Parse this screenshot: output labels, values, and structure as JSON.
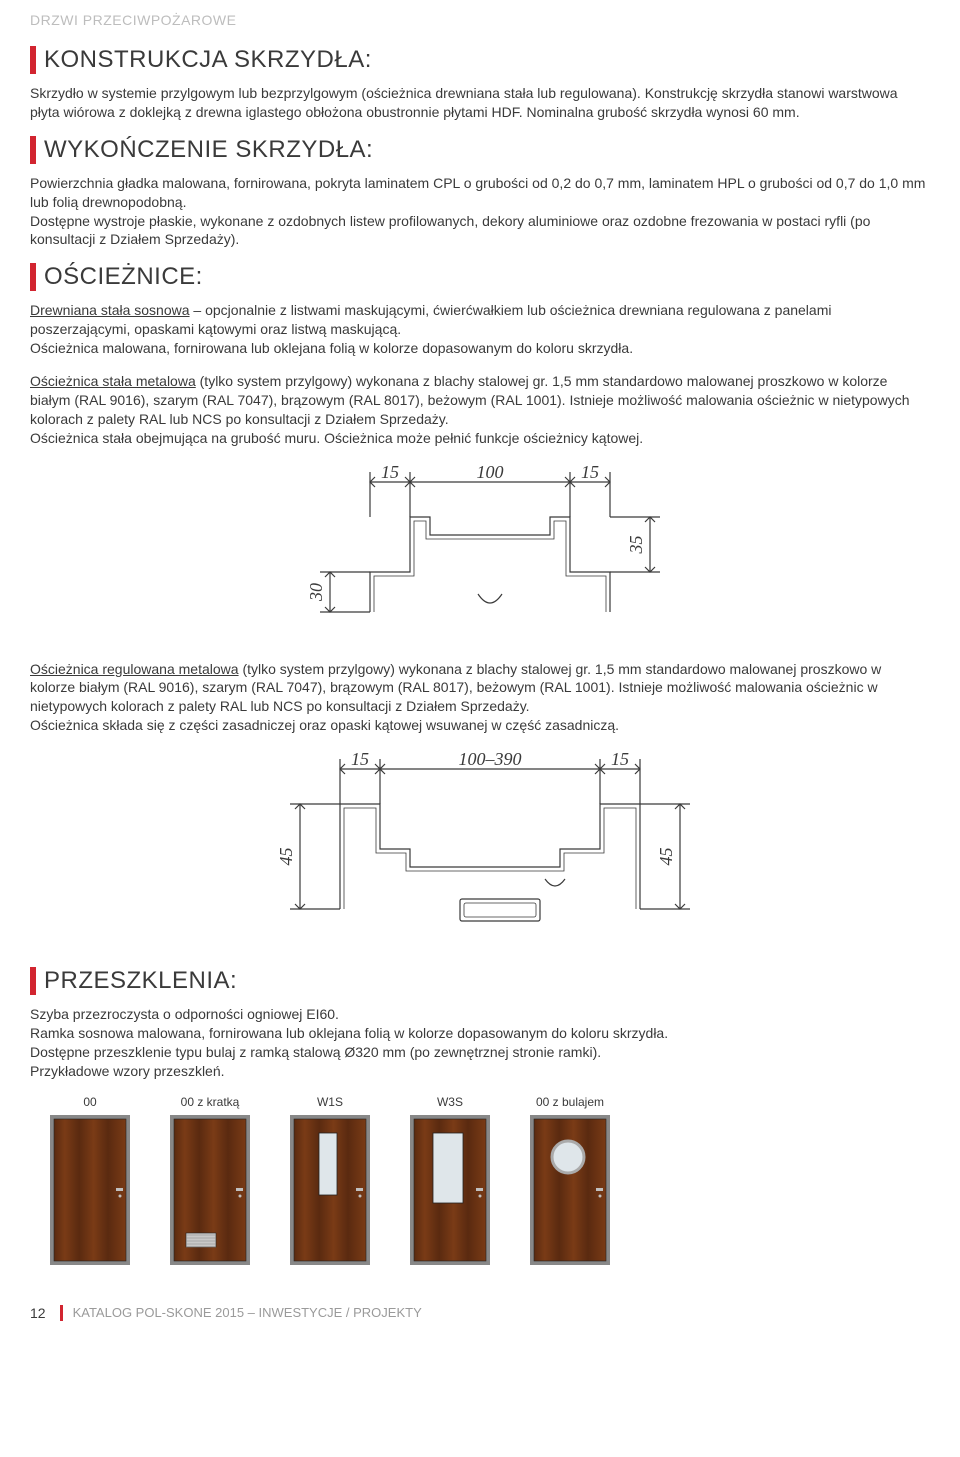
{
  "category": "DRZWI PRZECIWPOŻAROWE",
  "sections": {
    "konstrukcja": {
      "heading": "KONSTRUKCJA SKRZYDŁA:",
      "text": "Skrzydło w systemie przylgowym lub bezprzylgowym (ościeżnica drewniana stała lub regulowana). Konstrukcję skrzydła stanowi warstwowa płyta wiórowa z doklejką z drewna iglastego obłożona obustronnie płytami HDF. Nominalna grubość skrzydła wynosi 60 mm."
    },
    "wykonczenie": {
      "heading": "WYKOŃCZENIE SKRZYDŁA:",
      "text": "Powierzchnia gładka malowana, fornirowana, pokryta laminatem CPL o grubości od 0,2 do 0,7 mm, laminatem HPL o grubości od 0,7 do 1,0 mm lub folią drewnopodobną.\nDostępne wystroje płaskie, wykonane z ozdobnych listew profilowanych, dekory aluminiowe oraz ozdobne frezowania w postaci ryfli (po konsultacji z Działem Sprzedaży)."
    },
    "oscieznice": {
      "heading": "OŚCIEŻNICE:",
      "p1_lead": "Drewniana stała sosnowa",
      "p1_rest": " – opcjonalnie z listwami maskującymi, ćwierćwałkiem lub ościeżnica drewniana regulowana z panelami poszerzającymi, opaskami kątowymi oraz listwą maskującą.\nOścieżnica malowana, fornirowana lub oklejana folią w kolorze dopasowanym do koloru skrzydła.",
      "p2_lead": "Ościeżnica stała metalowa",
      "p2_rest": " (tylko system przylgowy) wykonana z blachy stalowej gr. 1,5 mm standardowo malowanej proszkowo w kolorze białym (RAL 9016), szarym (RAL 7047), brązowym (RAL 8017), beżowym (RAL 1001). Istnieje możliwość malowania ościeżnic w nietypowych kolorach z palety RAL lub NCS po konsultacji z Działem Sprzedaży.\nOścieżnica stała obejmująca na grubość muru. Ościeżnica może pełnić funkcje ościeżnicy kątowej.",
      "p3_lead": "Ościeżnica regulowana metalowa",
      "p3_rest": " (tylko system przylgowy) wykonana z blachy stalowej gr. 1,5 mm standardowo malowanej proszkowo w kolorze białym (RAL 9016), szarym (RAL 7047), brązowym (RAL 8017), beżowym (RAL 1001). Istnieje możliwość malowania ościeżnic w nietypowych kolorach z palety RAL lub NCS po konsultacji z Działem Sprzedaży.\nOścieżnica składa się z części zasadniczej oraz opaski kątowej wsuwanej w część zasadniczą."
    },
    "przeszklenia": {
      "heading": "PRZESZKLENIA:",
      "text": "Szyba przezroczysta o odporności ogniowej EI60.\nRamka sosnowa malowana, fornirowana lub oklejana folią w kolorze dopasowanym do koloru skrzydła.\nDostępne przeszklenie typu bulaj z ramką stalową Ø320 mm (po zewnętrznej stronie ramki).\nPrzykładowe wzory przeszkleń."
    }
  },
  "diagram1": {
    "dims": {
      "top_left": "15",
      "top_mid": "100",
      "top_right": "15",
      "left_v": "30",
      "right_v": "35"
    },
    "stroke": "#3a3a3a",
    "stroke_width": 1.2,
    "font_size": 18,
    "font_family": "serif"
  },
  "diagram2": {
    "dims": {
      "top_left": "15",
      "top_mid": "100–390",
      "top_right": "15",
      "left_v": "45",
      "right_v": "45"
    },
    "stroke": "#3a3a3a",
    "stroke_width": 1.2,
    "font_size": 18,
    "font_family": "serif"
  },
  "doors": {
    "items": [
      {
        "label": "00",
        "kind": "plain"
      },
      {
        "label": "00 z kratką",
        "kind": "kratka"
      },
      {
        "label": "W1S",
        "kind": "w1s"
      },
      {
        "label": "W3S",
        "kind": "w3s"
      },
      {
        "label": "00 z bulajem",
        "kind": "bulaj"
      }
    ],
    "door_color": "#7a3b16",
    "door_dark": "#5a2a10",
    "door_width": 80,
    "door_height": 150,
    "frame_color": "#888888",
    "glass_color": "#dfe6ea",
    "handle_color": "#c0c0c0",
    "border_color": "#222222",
    "grille_color": "#c8c8c8"
  },
  "footer": {
    "page_number": "12",
    "text": "KATALOG POL-SKONE 2015 – INWESTYCJE / PROJEKTY"
  },
  "colors": {
    "accent": "#d22530",
    "text": "#3a3a3a",
    "muted": "#bdbdbd"
  }
}
